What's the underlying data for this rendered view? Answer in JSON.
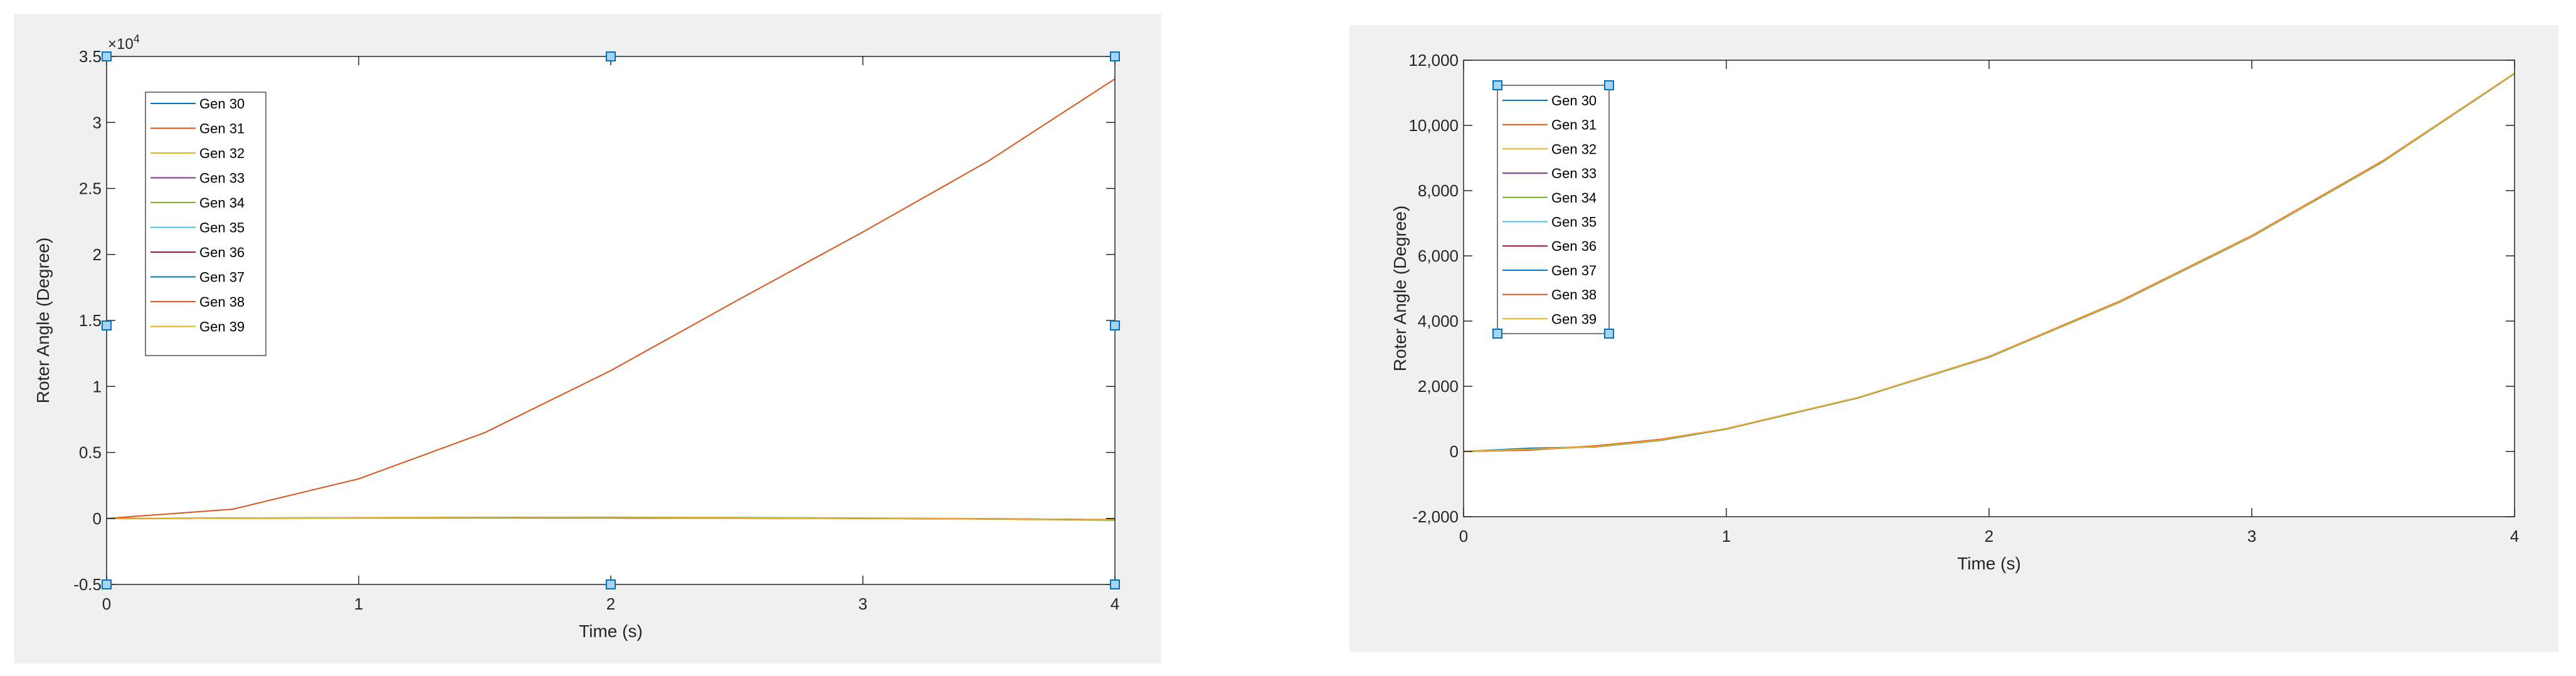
{
  "colors": {
    "panel_background": "#f0f0f0",
    "axes_background": "#ffffff",
    "axis_line": "#262626",
    "selection_handle_fill": "#a6d4f2",
    "selection_handle_stroke": "#0072bd"
  },
  "chart_data": [
    {
      "type": "line",
      "xlabel": "Time (s)",
      "ylabel": "Roter Angle (Degree)",
      "xlim": [
        0,
        4
      ],
      "ylim": [
        -0.5,
        3.5
      ],
      "y_exponent_label": "×10",
      "y_exponent_power": "4",
      "x_ticks": [
        0,
        1,
        2,
        3,
        4
      ],
      "x_tick_labels": [
        "0",
        "1",
        "2",
        "3",
        "4"
      ],
      "y_ticks": [
        -0.5,
        0,
        0.5,
        1,
        1.5,
        2,
        2.5,
        3,
        3.5
      ],
      "y_tick_labels": [
        "-0.5",
        "0",
        "0.5",
        "1",
        "1.5",
        "2",
        "2.5",
        "3",
        "3.5"
      ],
      "grid": false,
      "legend_position": "top-left",
      "selected": true,
      "series": [
        {
          "name": "Gen 30",
          "color": "#0072bd",
          "x": [
            0,
            0.5,
            1,
            1.5,
            2,
            2.5,
            3,
            3.5,
            4
          ],
          "y": [
            0,
            0.002,
            0.004,
            0.005,
            0.005,
            0.004,
            0.002,
            -0.002,
            -0.01
          ]
        },
        {
          "name": "Gen 31",
          "color": "#d95319",
          "x": [
            0,
            0.5,
            1,
            1.5,
            2,
            2.5,
            3,
            3.5,
            4
          ],
          "y": [
            0,
            0.07,
            0.3,
            0.65,
            1.12,
            1.65,
            2.17,
            2.71,
            3.33
          ]
        },
        {
          "name": "Gen 32",
          "color": "#edb120",
          "x": [
            0,
            0.5,
            1,
            1.5,
            2,
            2.5,
            3,
            3.5,
            4
          ],
          "y": [
            0,
            0.003,
            0.006,
            0.008,
            0.008,
            0.006,
            0.002,
            -0.003,
            -0.01
          ]
        },
        {
          "name": "Gen 33",
          "color": "#7e2f8e",
          "x": [
            0,
            0.5,
            1,
            1.5,
            2,
            2.5,
            3,
            3.5,
            4
          ],
          "y": [
            0,
            0.002,
            0.005,
            0.006,
            0.006,
            0.004,
            0.0,
            -0.005,
            -0.012
          ]
        },
        {
          "name": "Gen 34",
          "color": "#77ac30",
          "x": [
            0,
            0.5,
            1,
            1.5,
            2,
            2.5,
            3,
            3.5,
            4
          ],
          "y": [
            0,
            0.003,
            0.006,
            0.008,
            0.009,
            0.007,
            0.003,
            -0.004,
            -0.014
          ]
        },
        {
          "name": "Gen 35",
          "color": "#4dbeee",
          "x": [
            0,
            0.5,
            1,
            1.5,
            2,
            2.5,
            3,
            3.5,
            4
          ],
          "y": [
            0,
            0.002,
            0.004,
            0.005,
            0.005,
            0.003,
            0.0,
            -0.004,
            -0.01
          ]
        },
        {
          "name": "Gen 36",
          "color": "#a2142f",
          "x": [
            0,
            0.5,
            1,
            1.5,
            2,
            2.5,
            3,
            3.5,
            4
          ],
          "y": [
            0,
            0.002,
            0.004,
            0.005,
            0.004,
            0.003,
            0.0,
            -0.004,
            -0.009
          ]
        },
        {
          "name": "Gen 37",
          "color": "#0072bd",
          "x": [
            0,
            0.5,
            1,
            1.5,
            2,
            2.5,
            3,
            3.5,
            4
          ],
          "y": [
            0,
            0.003,
            0.005,
            0.007,
            0.007,
            0.005,
            0.001,
            -0.004,
            -0.012
          ]
        },
        {
          "name": "Gen 38",
          "color": "#d95319",
          "x": [
            0,
            0.5,
            1,
            1.5,
            2,
            2.5,
            3,
            3.5,
            4
          ],
          "y": [
            0,
            0.002,
            0.004,
            0.006,
            0.006,
            0.004,
            0.001,
            -0.003,
            -0.01
          ]
        },
        {
          "name": "Gen 39",
          "color": "#edb120",
          "x": [
            0,
            0.5,
            1,
            1.5,
            2,
            2.5,
            3,
            3.5,
            4
          ],
          "y": [
            0,
            0.002,
            0.005,
            0.006,
            0.006,
            0.005,
            0.001,
            -0.004,
            -0.011
          ]
        }
      ]
    },
    {
      "type": "line",
      "xlabel": "Time (s)",
      "ylabel": "Roter Angle (Degree)",
      "xlim": [
        0,
        4
      ],
      "ylim": [
        -2000,
        12000
      ],
      "x_ticks": [
        0,
        1,
        2,
        3,
        4
      ],
      "x_tick_labels": [
        "0",
        "1",
        "2",
        "3",
        "4"
      ],
      "y_ticks": [
        -2000,
        0,
        2000,
        4000,
        6000,
        8000,
        10000,
        12000
      ],
      "y_tick_labels": [
        "-2,000",
        "0",
        "2,000",
        "4,000",
        "6,000",
        "8,000",
        "10,000",
        "12,000"
      ],
      "grid": false,
      "legend_position": "top-left",
      "legend_selected": true,
      "series": [
        {
          "name": "Gen 30",
          "color": "#0072bd",
          "x": [
            0,
            0.25,
            0.5,
            0.75,
            1,
            1.5,
            2,
            2.5,
            3,
            3.5,
            4
          ],
          "y": [
            0,
            80,
            150,
            350,
            700,
            1650,
            2900,
            4600,
            6600,
            8900,
            11600
          ]
        },
        {
          "name": "Gen 31",
          "color": "#d95319",
          "x": [
            0,
            0.25,
            0.5,
            0.75,
            1,
            1.5,
            2,
            2.5,
            3,
            3.5,
            4
          ],
          "y": [
            0,
            40,
            170,
            370,
            690,
            1640,
            2910,
            4620,
            6620,
            8920,
            11600
          ]
        },
        {
          "name": "Gen 32",
          "color": "#edb120",
          "x": [
            0,
            0.25,
            0.5,
            0.75,
            1,
            1.5,
            2,
            2.5,
            3,
            3.5,
            4
          ],
          "y": [
            0,
            60,
            160,
            360,
            700,
            1650,
            2900,
            4600,
            6600,
            8900,
            11600
          ]
        },
        {
          "name": "Gen 33",
          "color": "#7e2f8e",
          "x": [
            0,
            0.25,
            0.5,
            0.75,
            1,
            1.5,
            2,
            2.5,
            3,
            3.5,
            4
          ],
          "y": [
            0,
            70,
            150,
            350,
            700,
            1650,
            2900,
            4600,
            6600,
            8900,
            11600
          ]
        },
        {
          "name": "Gen 34",
          "color": "#77ac30",
          "x": [
            0,
            0.25,
            0.5,
            0.75,
            1,
            1.5,
            2,
            2.5,
            3,
            3.5,
            4
          ],
          "y": [
            0,
            90,
            140,
            340,
            690,
            1640,
            2890,
            4590,
            6590,
            8890,
            11590
          ]
        },
        {
          "name": "Gen 35",
          "color": "#4dbeee",
          "x": [
            0,
            0.25,
            0.5,
            0.75,
            1,
            1.5,
            2,
            2.5,
            3,
            3.5,
            4
          ],
          "y": [
            0,
            50,
            160,
            360,
            700,
            1650,
            2900,
            4600,
            6600,
            8900,
            11600
          ]
        },
        {
          "name": "Gen 36",
          "color": "#a2142f",
          "x": [
            0,
            0.25,
            0.5,
            0.75,
            1,
            1.5,
            2,
            2.5,
            3,
            3.5,
            4
          ],
          "y": [
            0,
            60,
            150,
            350,
            700,
            1650,
            2900,
            4600,
            6600,
            8900,
            11600
          ]
        },
        {
          "name": "Gen 37",
          "color": "#0072bd",
          "x": [
            0,
            0.25,
            0.5,
            0.75,
            1,
            1.5,
            2,
            2.5,
            3,
            3.5,
            4
          ],
          "y": [
            0,
            100,
            140,
            340,
            690,
            1640,
            2890,
            4590,
            6590,
            8890,
            11590
          ]
        },
        {
          "name": "Gen 38",
          "color": "#d95319",
          "x": [
            0,
            0.25,
            0.5,
            0.75,
            1,
            1.5,
            2,
            2.5,
            3,
            3.5,
            4
          ],
          "y": [
            0,
            50,
            170,
            370,
            700,
            1650,
            2910,
            4610,
            6610,
            8910,
            11600
          ]
        },
        {
          "name": "Gen 39",
          "color": "#edb120",
          "x": [
            0,
            0.25,
            0.5,
            0.75,
            1,
            1.5,
            2,
            2.5,
            3,
            3.5,
            4
          ],
          "y": [
            0,
            70,
            150,
            350,
            700,
            1650,
            2900,
            4600,
            6600,
            8900,
            11600
          ]
        }
      ]
    }
  ]
}
